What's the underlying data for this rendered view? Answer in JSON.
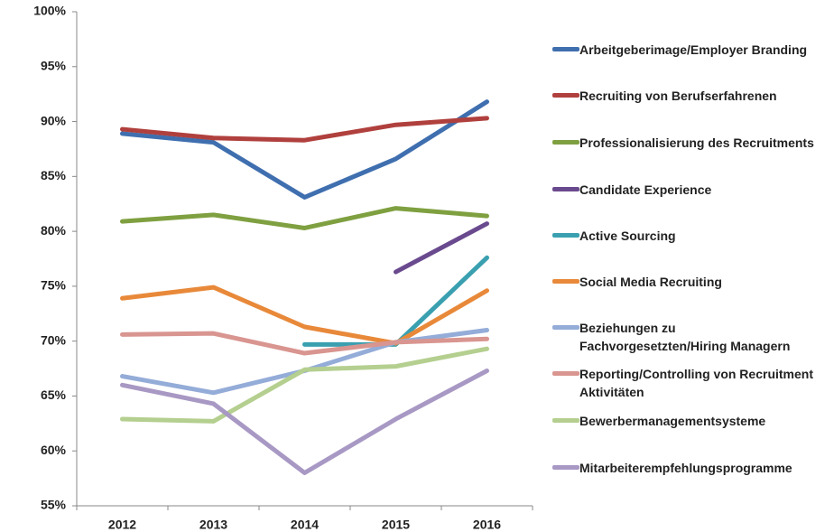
{
  "chart_data": {
    "type": "line",
    "categories": [
      "2012",
      "2013",
      "2014",
      "2015",
      "2016"
    ],
    "ylim": [
      55,
      100
    ],
    "yticks": [
      {
        "value": 55,
        "label": "55%"
      },
      {
        "value": 60,
        "label": "60%"
      },
      {
        "value": 65,
        "label": "65%"
      },
      {
        "value": 70,
        "label": "70%"
      },
      {
        "value": 75,
        "label": "75%"
      },
      {
        "value": 80,
        "label": "80%"
      },
      {
        "value": 85,
        "label": "85%"
      },
      {
        "value": 90,
        "label": "90%"
      },
      {
        "value": 95,
        "label": "95%"
      },
      {
        "value": 100,
        "label": "100%"
      }
    ],
    "grid": false,
    "legend": "right",
    "series": [
      {
        "name": "Arbeitgeberimage/Employer Branding",
        "color": "#3f6faf",
        "values": [
          88.9,
          88.1,
          83.1,
          86.6,
          91.8
        ]
      },
      {
        "name": "Recruiting von Berufserfahrenen",
        "color": "#b0403d",
        "values": [
          89.3,
          88.5,
          88.3,
          89.7,
          90.3
        ]
      },
      {
        "name": "Professionalisierung des Recruitments",
        "color": "#7fa040",
        "values": [
          80.9,
          81.5,
          80.3,
          82.1,
          81.4
        ]
      },
      {
        "name": "Candidate Experience",
        "color": "#6a4a8e",
        "values": [
          null,
          null,
          null,
          76.3,
          80.7
        ]
      },
      {
        "name": "Active Sourcing",
        "color": "#3aa0b0",
        "values": [
          null,
          null,
          69.7,
          69.7,
          77.6
        ]
      },
      {
        "name": "Social Media Recruiting",
        "color": "#e8893a",
        "values": [
          73.9,
          74.9,
          71.3,
          69.8,
          74.6
        ]
      },
      {
        "name": "Beziehungen zu Fachvorgesetzten/Hiring Managern",
        "color": "#94acd8",
        "values": [
          66.8,
          65.3,
          67.3,
          69.9,
          71.0
        ]
      },
      {
        "name": "Reporting/Controlling von Recruitment Aktivitäten",
        "color": "#d99590",
        "values": [
          70.6,
          70.7,
          68.9,
          69.9,
          70.2
        ]
      },
      {
        "name": "Bewerbermanagementsysteme",
        "color": "#b4cf8f",
        "values": [
          62.9,
          62.7,
          67.4,
          67.7,
          69.3
        ]
      },
      {
        "name": "Mitarbeiterempfehlungsprogramme",
        "color": "#a898c4",
        "values": [
          66.0,
          64.3,
          58.0,
          62.9,
          67.3
        ]
      }
    ]
  }
}
